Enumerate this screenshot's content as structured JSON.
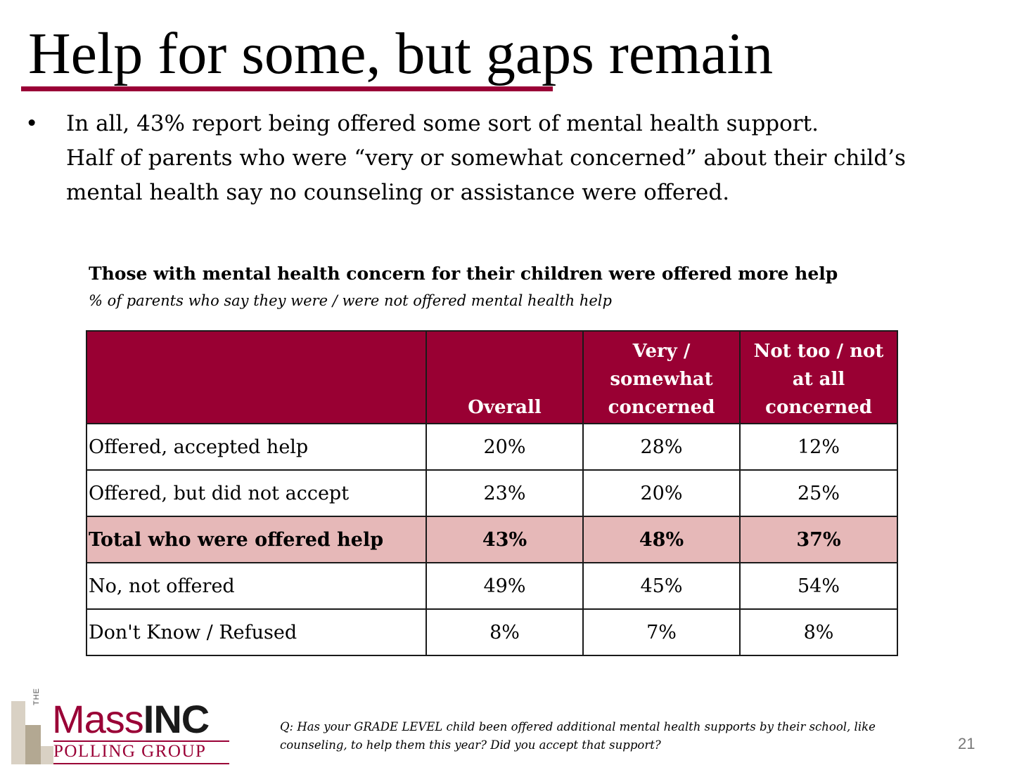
{
  "slide": {
    "title": "Help for some, but gaps remain",
    "bullet_symbol": "•",
    "bullet_line1": "In all, 43% report being offered some sort of mental health support.",
    "bullet_rest": "Half of parents who were “very or somewhat concerned” about their child’s mental health say no counseling or assistance were offered.",
    "accent_color": "#9a0036",
    "page_number": "21"
  },
  "chart_data": {
    "type": "table",
    "title": "Those with mental health concern for their children were offered more help",
    "subtitle": "% of parents who say they were / were not offered mental health help",
    "columns": [
      "",
      "Overall",
      "Very / somewhat concerned",
      "Not too / not at all concerned"
    ],
    "rows": [
      {
        "label": "Offered, accepted help",
        "values": [
          "20%",
          "28%",
          "12%"
        ],
        "highlight": false
      },
      {
        "label": "Offered, but did not accept",
        "values": [
          "23%",
          "20%",
          "25%"
        ],
        "highlight": false
      },
      {
        "label": "Total who were offered help",
        "values": [
          "43%",
          "48%",
          "37%"
        ],
        "highlight": true
      },
      {
        "label": "No, not offered",
        "values": [
          "49%",
          "45%",
          "54%"
        ],
        "highlight": false
      },
      {
        "label": "Don't Know / Refused",
        "values": [
          "8%",
          "7%",
          "8%"
        ],
        "highlight": false
      }
    ],
    "header_color": "#990033",
    "highlight_color": "#e6b8b8"
  },
  "footnote": "Q: Has your GRADE LEVEL child been offered additional mental health supports by their school, like counseling, to help them this year? Did you accept that support?",
  "logo": {
    "the": "THE",
    "mass": "Mass",
    "inc": "INC",
    "polling": "POLLING GROUP"
  }
}
